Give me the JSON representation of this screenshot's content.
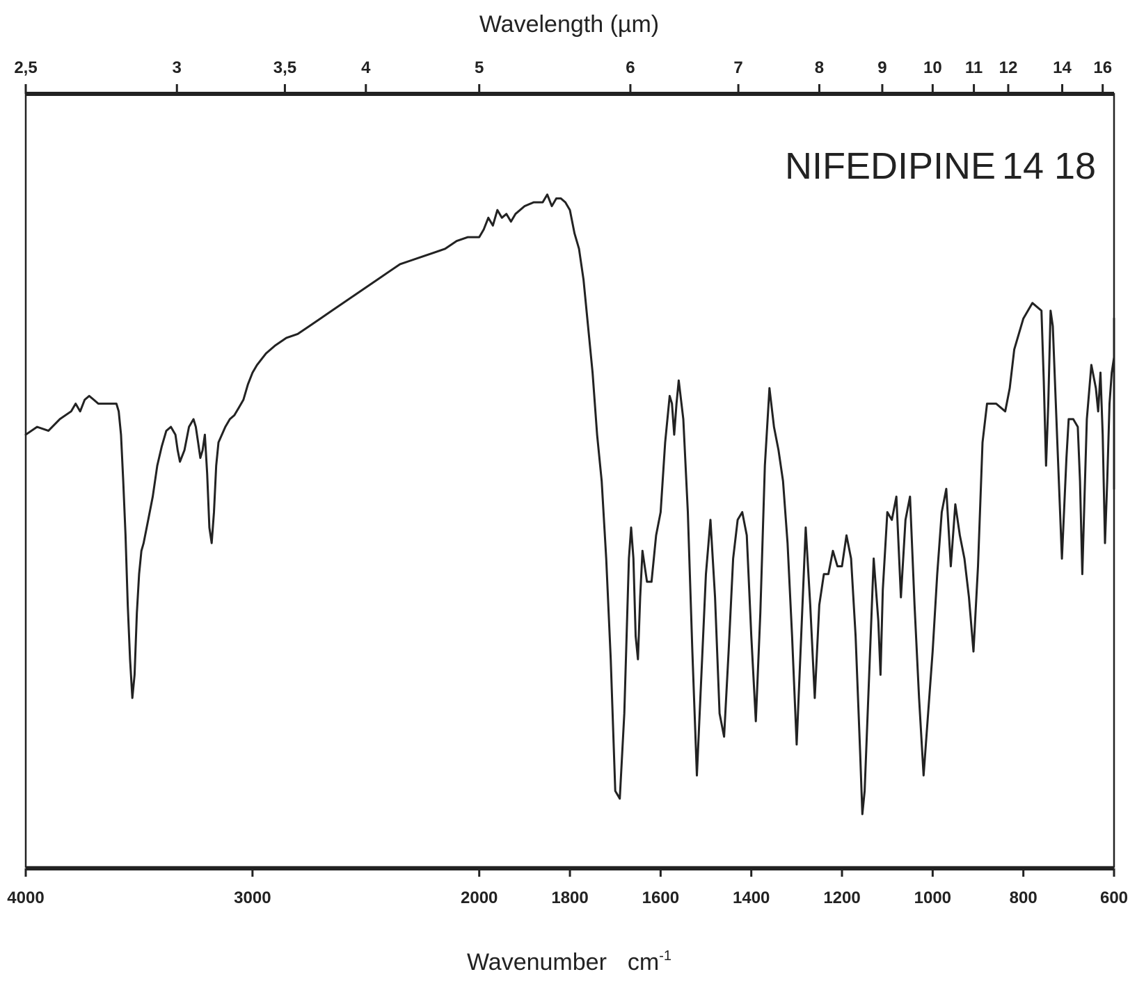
{
  "chart_data": {
    "type": "line",
    "title": "",
    "annotation": {
      "name": "NIFEDIPINE",
      "num1": "14",
      "num2": "18"
    },
    "xlabel": "Wavenumber",
    "xlabel_unit": "cm",
    "xlabel_unit_exp": "-1",
    "x2label": "Wavelength (µm)",
    "ylabel": "",
    "x_axis": {
      "segments": [
        {
          "from": 4000,
          "to": 2000,
          "fraction": 0.4167
        },
        {
          "from": 2000,
          "to": 600,
          "fraction": 0.5833
        }
      ],
      "ticks": [
        {
          "value": 4000,
          "label": "4000"
        },
        {
          "value": 3000,
          "label": "3000"
        },
        {
          "value": 2000,
          "label": "2000"
        },
        {
          "value": 1800,
          "label": "1800"
        },
        {
          "value": 1600,
          "label": "1600"
        },
        {
          "value": 1400,
          "label": "1400"
        },
        {
          "value": 1200,
          "label": "1200"
        },
        {
          "value": 1000,
          "label": "1000"
        },
        {
          "value": 800,
          "label": "800"
        },
        {
          "value": 600,
          "label": "600"
        }
      ]
    },
    "x2_ticks": [
      {
        "value": 2.5,
        "label": "2,5"
      },
      {
        "value": 3,
        "label": "3"
      },
      {
        "value": 3.5,
        "label": "3,5"
      },
      {
        "value": 4,
        "label": "4"
      },
      {
        "value": 5,
        "label": "5"
      },
      {
        "value": 6,
        "label": "6"
      },
      {
        "value": 7,
        "label": "7"
      },
      {
        "value": 8,
        "label": "8"
      },
      {
        "value": 9,
        "label": "9"
      },
      {
        "value": 10,
        "label": "10"
      },
      {
        "value": 11,
        "label": "11"
      },
      {
        "value": 12,
        "label": "12"
      },
      {
        "value": 14,
        "label": "14"
      },
      {
        "value": 16,
        "label": "16"
      }
    ],
    "ylim": [
      0,
      100
    ],
    "grid": false,
    "series": [
      {
        "color": "#222222",
        "points": [
          [
            4000,
            56
          ],
          [
            3950,
            57
          ],
          [
            3900,
            56.5
          ],
          [
            3850,
            58
          ],
          [
            3800,
            59
          ],
          [
            3780,
            60
          ],
          [
            3760,
            59
          ],
          [
            3740,
            60.5
          ],
          [
            3720,
            61
          ],
          [
            3700,
            60.5
          ],
          [
            3680,
            60
          ],
          [
            3660,
            60
          ],
          [
            3640,
            60
          ],
          [
            3620,
            60
          ],
          [
            3600,
            60
          ],
          [
            3590,
            59
          ],
          [
            3580,
            56
          ],
          [
            3570,
            50
          ],
          [
            3560,
            43
          ],
          [
            3550,
            34
          ],
          [
            3540,
            27
          ],
          [
            3530,
            22
          ],
          [
            3520,
            25
          ],
          [
            3510,
            33
          ],
          [
            3500,
            38
          ],
          [
            3490,
            41
          ],
          [
            3480,
            42
          ],
          [
            3460,
            45
          ],
          [
            3440,
            48
          ],
          [
            3420,
            52
          ],
          [
            3400,
            54.5
          ],
          [
            3380,
            56.5
          ],
          [
            3360,
            57
          ],
          [
            3340,
            56
          ],
          [
            3330,
            54
          ],
          [
            3320,
            52.5
          ],
          [
            3300,
            54
          ],
          [
            3280,
            57
          ],
          [
            3260,
            58
          ],
          [
            3250,
            57
          ],
          [
            3240,
            55
          ],
          [
            3230,
            53
          ],
          [
            3220,
            54
          ],
          [
            3210,
            56
          ],
          [
            3200,
            51
          ],
          [
            3190,
            44
          ],
          [
            3180,
            42
          ],
          [
            3170,
            46
          ],
          [
            3160,
            52
          ],
          [
            3150,
            55
          ],
          [
            3120,
            57
          ],
          [
            3100,
            58
          ],
          [
            3080,
            58.5
          ],
          [
            3060,
            59.5
          ],
          [
            3040,
            60.5
          ],
          [
            3020,
            62.5
          ],
          [
            3000,
            64
          ],
          [
            2980,
            65
          ],
          [
            2940,
            66.5
          ],
          [
            2900,
            67.5
          ],
          [
            2850,
            68.5
          ],
          [
            2800,
            69
          ],
          [
            2750,
            70
          ],
          [
            2700,
            71
          ],
          [
            2650,
            72
          ],
          [
            2600,
            73
          ],
          [
            2550,
            74
          ],
          [
            2500,
            75
          ],
          [
            2450,
            76
          ],
          [
            2400,
            77
          ],
          [
            2350,
            78
          ],
          [
            2300,
            78.5
          ],
          [
            2250,
            79
          ],
          [
            2200,
            79.5
          ],
          [
            2150,
            80
          ],
          [
            2100,
            81
          ],
          [
            2050,
            81.5
          ],
          [
            2000,
            81.5
          ],
          [
            1990,
            82.5
          ],
          [
            1980,
            84
          ],
          [
            1970,
            83
          ],
          [
            1960,
            85
          ],
          [
            1950,
            84
          ],
          [
            1940,
            84.5
          ],
          [
            1930,
            83.5
          ],
          [
            1920,
            84.5
          ],
          [
            1900,
            85.5
          ],
          [
            1880,
            86
          ],
          [
            1860,
            86
          ],
          [
            1850,
            87
          ],
          [
            1840,
            85.5
          ],
          [
            1830,
            86.5
          ],
          [
            1820,
            86.5
          ],
          [
            1810,
            86
          ],
          [
            1800,
            85
          ],
          [
            1790,
            82
          ],
          [
            1780,
            80
          ],
          [
            1770,
            76
          ],
          [
            1760,
            70
          ],
          [
            1750,
            64
          ],
          [
            1740,
            56
          ],
          [
            1730,
            50
          ],
          [
            1720,
            40
          ],
          [
            1710,
            27
          ],
          [
            1700,
            10
          ],
          [
            1690,
            9
          ],
          [
            1680,
            20
          ],
          [
            1675,
            30
          ],
          [
            1670,
            40
          ],
          [
            1665,
            44
          ],
          [
            1660,
            40
          ],
          [
            1655,
            30
          ],
          [
            1650,
            27
          ],
          [
            1645,
            35
          ],
          [
            1640,
            41
          ],
          [
            1630,
            37
          ],
          [
            1620,
            37
          ],
          [
            1610,
            43
          ],
          [
            1600,
            46
          ],
          [
            1590,
            55
          ],
          [
            1580,
            61
          ],
          [
            1575,
            60
          ],
          [
            1570,
            56
          ],
          [
            1565,
            60
          ],
          [
            1560,
            63
          ],
          [
            1550,
            58
          ],
          [
            1540,
            46
          ],
          [
            1530,
            28
          ],
          [
            1520,
            12
          ],
          [
            1510,
            25
          ],
          [
            1500,
            38
          ],
          [
            1490,
            45
          ],
          [
            1480,
            35
          ],
          [
            1470,
            20
          ],
          [
            1460,
            17
          ],
          [
            1450,
            28
          ],
          [
            1440,
            40
          ],
          [
            1430,
            45
          ],
          [
            1420,
            46
          ],
          [
            1410,
            43
          ],
          [
            1400,
            30
          ],
          [
            1390,
            19
          ],
          [
            1380,
            33
          ],
          [
            1370,
            52
          ],
          [
            1360,
            62
          ],
          [
            1350,
            57
          ],
          [
            1340,
            54
          ],
          [
            1330,
            50
          ],
          [
            1320,
            42
          ],
          [
            1310,
            30
          ],
          [
            1300,
            16
          ],
          [
            1290,
            30
          ],
          [
            1280,
            44
          ],
          [
            1270,
            34
          ],
          [
            1260,
            22
          ],
          [
            1250,
            34
          ],
          [
            1240,
            38
          ],
          [
            1230,
            38
          ],
          [
            1220,
            41
          ],
          [
            1210,
            39
          ],
          [
            1200,
            39
          ],
          [
            1190,
            43
          ],
          [
            1180,
            40
          ],
          [
            1170,
            30
          ],
          [
            1160,
            15
          ],
          [
            1155,
            7
          ],
          [
            1150,
            10
          ],
          [
            1140,
            25
          ],
          [
            1130,
            40
          ],
          [
            1120,
            32
          ],
          [
            1115,
            25
          ],
          [
            1110,
            36
          ],
          [
            1100,
            46
          ],
          [
            1090,
            45
          ],
          [
            1080,
            48
          ],
          [
            1070,
            35
          ],
          [
            1060,
            45
          ],
          [
            1050,
            48
          ],
          [
            1040,
            34
          ],
          [
            1030,
            22
          ],
          [
            1020,
            12
          ],
          [
            1010,
            20
          ],
          [
            1000,
            28
          ],
          [
            990,
            38
          ],
          [
            980,
            46
          ],
          [
            970,
            49
          ],
          [
            960,
            39
          ],
          [
            950,
            47
          ],
          [
            940,
            43
          ],
          [
            930,
            40
          ],
          [
            920,
            35
          ],
          [
            910,
            28
          ],
          [
            900,
            39
          ],
          [
            890,
            55
          ],
          [
            880,
            60
          ],
          [
            860,
            60
          ],
          [
            840,
            59
          ],
          [
            830,
            62
          ],
          [
            820,
            67
          ],
          [
            800,
            71
          ],
          [
            780,
            73
          ],
          [
            760,
            72
          ],
          [
            755,
            63
          ],
          [
            750,
            52
          ],
          [
            745,
            60
          ],
          [
            740,
            72
          ],
          [
            735,
            70
          ],
          [
            725,
            55
          ],
          [
            715,
            40
          ],
          [
            705,
            53
          ],
          [
            700,
            58
          ],
          [
            690,
            58
          ],
          [
            680,
            57
          ],
          [
            675,
            50
          ],
          [
            670,
            38
          ],
          [
            665,
            48
          ],
          [
            660,
            58
          ],
          [
            650,
            65
          ],
          [
            640,
            62
          ],
          [
            635,
            59
          ],
          [
            630,
            64
          ],
          [
            625,
            56
          ],
          [
            620,
            42
          ],
          [
            615,
            50
          ],
          [
            610,
            60
          ],
          [
            605,
            64
          ],
          [
            600,
            66
          ],
          [
            595,
            62
          ],
          [
            590,
            55
          ],
          [
            580,
            56
          ],
          [
            570,
            57
          ],
          [
            560,
            59
          ],
          [
            550,
            61
          ],
          [
            540,
            63
          ],
          [
            530,
            65
          ],
          [
            520,
            67
          ],
          [
            510,
            70
          ],
          [
            505,
            71
          ],
          [
            500,
            67
          ],
          [
            495,
            63
          ],
          [
            490,
            62
          ],
          [
            480,
            60
          ],
          [
            470,
            57
          ],
          [
            460,
            55
          ],
          [
            455,
            52
          ],
          [
            450,
            49
          ],
          [
            445,
            56
          ],
          [
            440,
            58
          ],
          [
            435,
            55
          ],
          [
            430,
            57
          ],
          [
            420,
            58
          ],
          [
            410,
            58.5
          ],
          [
            400,
            59
          ],
          [
            390,
            59.5
          ]
        ]
      }
    ]
  }
}
